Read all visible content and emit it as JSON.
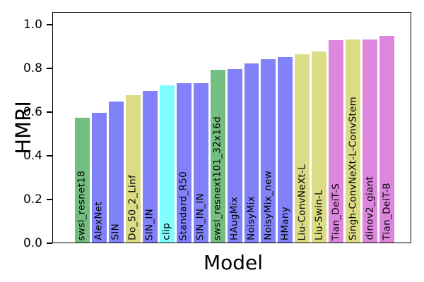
{
  "figure": {
    "background": "#ffffff",
    "axis_color": "#000000",
    "text_color": "#000000"
  },
  "chart_data": {
    "type": "bar",
    "title": "",
    "xlabel": "Model",
    "ylabel": "HMRI",
    "ylim": [
      0,
      1.058
    ],
    "grid": false,
    "legend": "none",
    "bar_label_placement": "inside-bottom-rotated-90",
    "ytick_values": [
      0.0,
      0.2,
      0.4,
      0.6,
      0.8,
      1.0
    ],
    "ytick_labels": [
      "0.0",
      "0.2",
      "0.4",
      "0.6",
      "0.8",
      "1.0"
    ],
    "categories": [
      "swsl_resnet18",
      "AlexNet",
      "SIN",
      "Do_50_2_Linf",
      "SIN_IN",
      "clip",
      "Standard_R50",
      "SIN_IN_IN",
      "swsl_resnext101_32x16d",
      "HAugMix",
      "NoisyMix",
      "NoisyMix_new",
      "HMany",
      "Liu-ConvNeXt-L",
      "Liu-Swin-L",
      "Tian_DeiT-S",
      "Singh-ConvNeXt-L-ConvStem",
      "dinov2_giant",
      "Tian_DeiT-B"
    ],
    "values": [
      0.57,
      0.595,
      0.645,
      0.675,
      0.695,
      0.72,
      0.73,
      0.73,
      0.79,
      0.795,
      0.82,
      0.84,
      0.85,
      0.86,
      0.875,
      0.925,
      0.93,
      0.93,
      0.945
    ],
    "colors": [
      "#74BE81",
      "#8181F9",
      "#8181F9",
      "#DBDC85",
      "#8181F9",
      "#80FDFD",
      "#8181F9",
      "#8181F9",
      "#74BE81",
      "#8181F9",
      "#8181F9",
      "#8181F9",
      "#8181F9",
      "#DBDC85",
      "#DBDC85",
      "#DD86DD",
      "#DBDC85",
      "#DD86DD",
      "#DD86DD"
    ]
  }
}
